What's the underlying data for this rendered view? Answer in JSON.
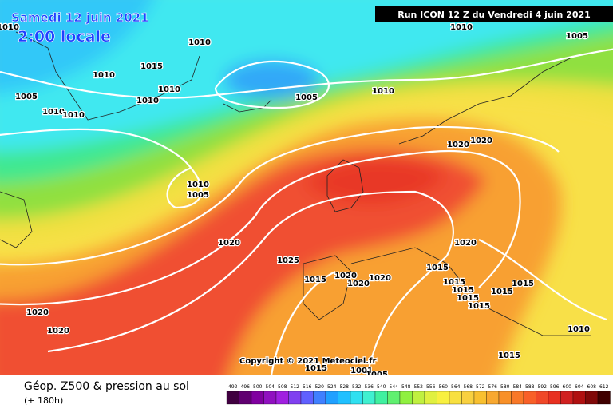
{
  "header": {
    "date": "Samedi 12 juin 2021",
    "local_time": "2:00 locale",
    "run": "Run ICON 12 Z du Vendredi 4 juin 2021"
  },
  "isobar_labels": [
    "1010",
    "1010",
    "1015",
    "1010",
    "1005",
    "1010",
    "1010",
    "1010",
    "1010",
    "1005",
    "1010",
    "1010",
    "1005",
    "1020",
    "1020",
    "1010",
    "1005",
    "1020",
    "1025",
    "1020",
    "1015",
    "1015",
    "1020",
    "1020",
    "1020",
    "1015",
    "1015",
    "1015",
    "1015",
    "1015",
    "1015",
    "1020",
    "1020",
    "1010",
    "1015",
    "1001",
    "1005",
    "1015"
  ],
  "copyright": "Copyright © 2021 Meteociel.fr",
  "legend": {
    "title": "Géop. Z500 & pression au sol",
    "subtitle": "(+ 180h)",
    "scale": {
      "labels": [
        492,
        496,
        500,
        504,
        508,
        512,
        516,
        520,
        524,
        528,
        532,
        536,
        540,
        544,
        548,
        552,
        556,
        560,
        564,
        568,
        572,
        576,
        580,
        584,
        588,
        592,
        596,
        600,
        604,
        608,
        612
      ],
      "colors": [
        "#400040",
        "#600070",
        "#8000a0",
        "#9010c0",
        "#a020e0",
        "#8040f0",
        "#6060ff",
        "#4080ff",
        "#20a0ff",
        "#20c0ff",
        "#30e0f0",
        "#40f0d0",
        "#40f0a0",
        "#60f070",
        "#90f040",
        "#c0f040",
        "#e0f040",
        "#f8f040",
        "#f8e040",
        "#f8d040",
        "#f8c030",
        "#f8a830",
        "#f89028",
        "#f87828",
        "#f86028",
        "#f04828",
        "#e83020",
        "#d02020",
        "#b01010",
        "#800808",
        "#400000"
      ]
    }
  }
}
